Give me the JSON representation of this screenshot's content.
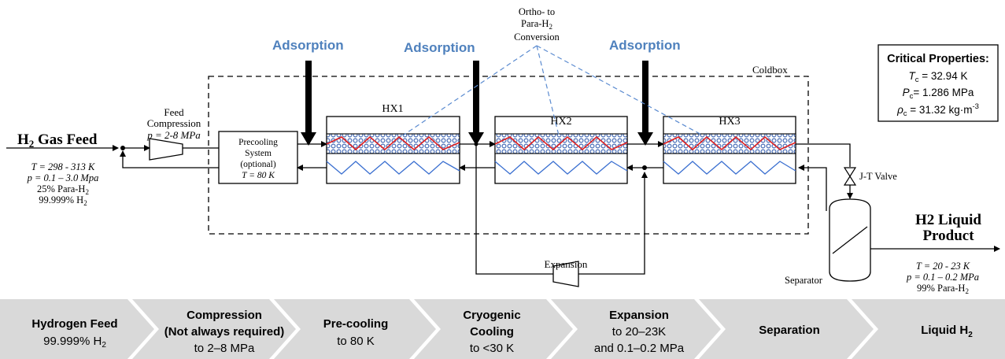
{
  "colors": {
    "adsorption": "#4f81bd",
    "ortho_dash": "#5b8bd0",
    "hot_zigzag": "#e02020",
    "cold_zigzag": "#3a6fd0",
    "catalyst": "#5a7ec2",
    "process_band": "#d9d9d9",
    "band_text": "#000000"
  },
  "feed": {
    "title_main": "H",
    "title_sub": "2",
    "title_rest": " Gas Feed",
    "temperature": "T = 298 - 313 K",
    "pressure": "p = 0.1 – 3.0 Mpa",
    "para_main": "25% Para-H",
    "para_sub": "2",
    "purity_main": "99.999% H",
    "purity_sub": "2"
  },
  "compression": {
    "line1": "Feed",
    "line2": "Compression",
    "line3": "p = 2-8 MPa"
  },
  "precooling": {
    "line1": "Precooling",
    "line2": "System",
    "line3": "(optional)",
    "line4": "T = 80 K"
  },
  "adsorption_label": "Adsorption",
  "ortho_para": {
    "line1": "Ortho- to",
    "line2_main": "Para-H",
    "line2_sub": "2",
    "line3": "Conversion"
  },
  "coldbox_label": "Coldbox",
  "hx": [
    "HX1",
    "HX2",
    "HX3"
  ],
  "expansion_label": "Expansion",
  "jt_valve_label": "J-T Valve",
  "separator_label": "Separator",
  "critical": {
    "title": "Critical Properties:",
    "tc_sym": "T",
    "tc_sub": "c",
    "tc_val": " = 32.94 K",
    "pc_sym": "P",
    "pc_sub": "c",
    "pc_val": "= 1.286 MPa",
    "rho_sym": "ρ",
    "rho_sub": "c",
    "rho_val": " = 31.32 kg·m",
    "rho_sup": "-3"
  },
  "product": {
    "title_line1": "H2 Liquid",
    "title_line2": "Product",
    "temperature": "T = 20 - 23 K",
    "pressure": "p = 0.1 – 0.2 MPa",
    "para": "99% Para-H",
    "para_sub": "2"
  },
  "steps": [
    {
      "title": "Hydrogen Feed",
      "sub_main": "99.999% H",
      "sub_sub": "2"
    },
    {
      "title": "Compression",
      "title2": "(Not always required)",
      "sub_main": "to 2–8 MPa"
    },
    {
      "title": "Pre-cooling",
      "sub_main": "to 80 K"
    },
    {
      "title": "Cryogenic",
      "title2": "Cooling",
      "sub_main": "to <30 K"
    },
    {
      "title": "Expansion",
      "sub_main": "to 20–23K",
      "sub2": "and 0.1–0.2 MPa"
    },
    {
      "title": "Separation"
    },
    {
      "title_main": "Liquid H",
      "title_sub": "2"
    }
  ]
}
